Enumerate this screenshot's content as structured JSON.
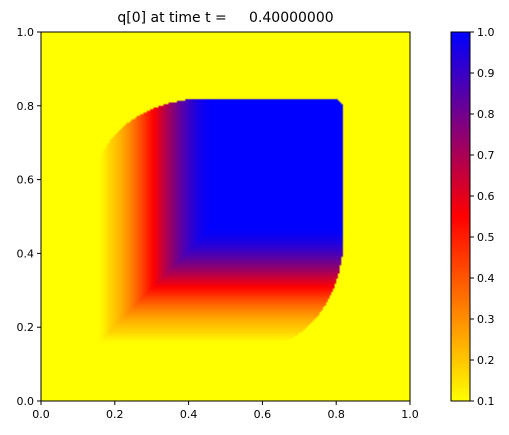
{
  "chart_data": {
    "type": "heatmap",
    "title": "q[0] at time t =     0.40000000",
    "xlabel": "",
    "ylabel": "",
    "xlim": [
      0.0,
      1.0
    ],
    "ylim": [
      0.0,
      1.0
    ],
    "x_ticks": [
      "0.0",
      "0.2",
      "0.4",
      "0.6",
      "0.8",
      "1.0"
    ],
    "y_ticks": [
      "0.0",
      "0.2",
      "0.4",
      "0.6",
      "0.8",
      "1.0"
    ],
    "colorbar": {
      "range": [
        0.1,
        1.0
      ],
      "ticks": [
        "0.1",
        "0.2",
        "0.3",
        "0.4",
        "0.5",
        "0.6",
        "0.7",
        "0.8",
        "0.9",
        "1.0"
      ],
      "colors": [
        "#ffff00",
        "#ff0000",
        "#0000ff"
      ]
    },
    "field": {
      "background_value": 0.1,
      "region_x_range": [
        0.15,
        0.82
      ],
      "region_y_range": [
        0.15,
        0.82
      ],
      "plateau_x_range": [
        0.47,
        0.82
      ],
      "plateau_y_range": [
        0.48,
        0.82
      ],
      "peak_value": 1.0
    },
    "grid": false,
    "legend": "none"
  }
}
